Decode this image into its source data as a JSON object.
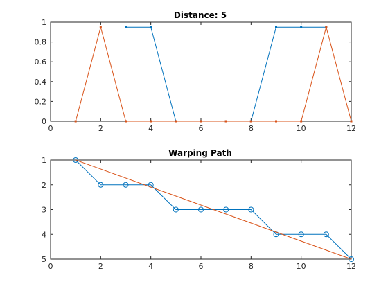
{
  "chart_data": [
    {
      "type": "line",
      "title": "Distance: 5",
      "xlabel": "",
      "ylabel": "",
      "xlim": [
        0,
        12
      ],
      "ylim": [
        0,
        1
      ],
      "xticks": [
        "0",
        "2",
        "4",
        "6",
        "8",
        "10",
        "12"
      ],
      "yticks": [
        "0",
        "0.2",
        "0.4",
        "0.6",
        "0.8",
        "1"
      ],
      "grid": false,
      "y_reversed": false,
      "series": [
        {
          "color": "#0072BD",
          "marker": "dot",
          "x": [
            3,
            4,
            5,
            6,
            7,
            8,
            9,
            10,
            11
          ],
          "y": [
            0.95,
            0.95,
            0,
            0,
            0,
            0,
            0.95,
            0.95,
            0.95
          ]
        },
        {
          "color": "#D95319",
          "marker": "dot",
          "x": [
            1,
            2,
            3,
            4,
            5,
            6,
            7,
            8,
            9,
            10,
            11,
            12
          ],
          "y": [
            0,
            0.95,
            0,
            0,
            0,
            0,
            0,
            0,
            0,
            0,
            0.95,
            0
          ]
        }
      ]
    },
    {
      "type": "line",
      "title": "Warping Path",
      "xlabel": "",
      "ylabel": "",
      "xlim": [
        0,
        12
      ],
      "ylim": [
        1,
        5
      ],
      "xticks": [
        "0",
        "2",
        "4",
        "6",
        "8",
        "10",
        "12"
      ],
      "yticks": [
        "1",
        "2",
        "3",
        "4",
        "5"
      ],
      "grid": false,
      "y_reversed": true,
      "series": [
        {
          "color": "#0072BD",
          "marker": "circle",
          "x": [
            1,
            2,
            3,
            4,
            5,
            6,
            7,
            8,
            9,
            10,
            11,
            12
          ],
          "y": [
            1,
            2,
            2,
            2,
            3,
            3,
            3,
            3,
            4,
            4,
            4,
            5
          ]
        },
        {
          "color": "#D95319",
          "marker": "none",
          "x": [
            1,
            12
          ],
          "y": [
            1,
            5
          ]
        }
      ]
    }
  ]
}
